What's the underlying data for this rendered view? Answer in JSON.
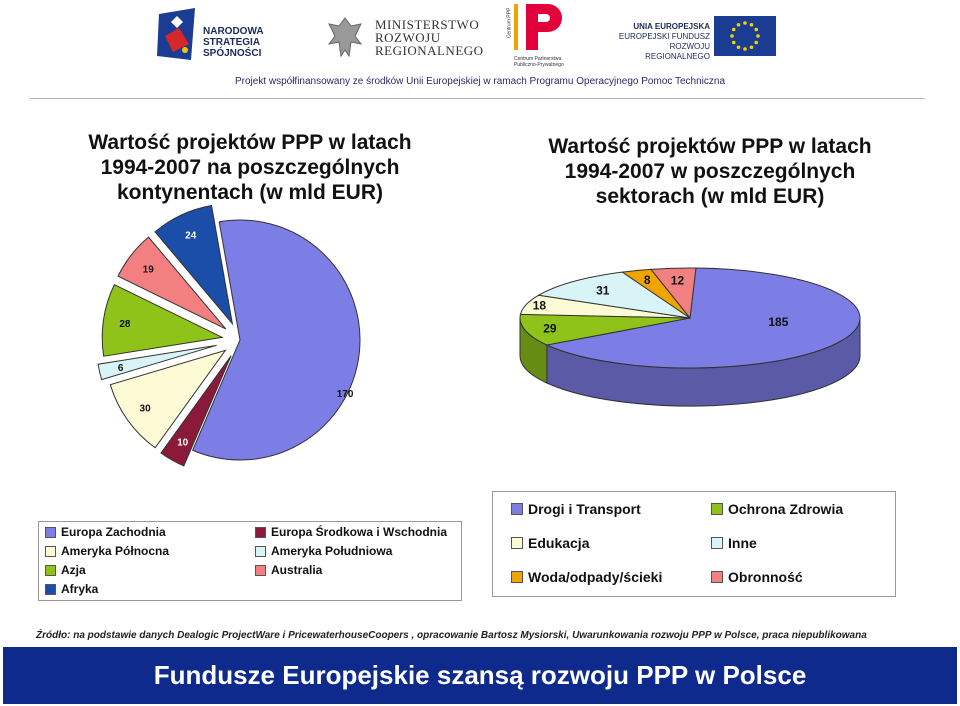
{
  "header": {
    "logo1_line1": "NARODOWA",
    "logo1_line2": "STRATEGIA SPÓJNOŚCI",
    "logo2_line1": "MINISTERSTWO",
    "logo2_line2": "ROZWOJU",
    "logo2_line3": "REGIONALNEGO",
    "logo3_caption1": "Centrum Partnerstwa",
    "logo3_caption2": "Publiczno-Prywatnego",
    "logo3_vertical": "Centrum PPP",
    "logo4_line1": "UNIA EUROPEJSKA",
    "logo4_line2": "EUROPEJSKI FUNDUSZ",
    "logo4_line3": "ROZWOJU REGIONALNEGO",
    "cofinance": "Projekt współfinansowany ze środków Unii Europejskiej w ramach Programu Operacyjnego Pomoc Techniczna"
  },
  "colors": {
    "navy": "#0d2a8c",
    "blue": "#7d7de6",
    "maroon": "#8b1a3a",
    "cream": "#fdfbd6",
    "lightcyan": "#d9f4f6",
    "green": "#8fc31a",
    "salmon": "#f28080",
    "darkblue": "#1b4ea8",
    "orange": "#f0a400"
  },
  "chart_data": [
    {
      "type": "pie",
      "title_lines": [
        "Wartość projektów PPP w latach",
        "1994-2007 na poszczególnych",
        "kontynentach (w mld EUR)"
      ],
      "categories": [
        "Europa Zachodnia",
        "Europa Środkowa i Wschodnia",
        "Ameryka Północna",
        "Ameryka Południowa",
        "Azja",
        "Australia",
        "Afryka"
      ],
      "values": [
        170,
        10,
        30,
        6,
        28,
        19,
        24
      ],
      "colors": [
        "#7d7de6",
        "#8b1a3a",
        "#fdfbd6",
        "#d9f4f6",
        "#8fc31a",
        "#f28080",
        "#1b4ea8"
      ],
      "legend": "bottom"
    },
    {
      "type": "pie",
      "title_lines": [
        "Wartość projektów PPP w latach",
        "1994-2007 w poszczególnych",
        "sektorach (w mld EUR)"
      ],
      "categories": [
        "Drogi i Transport",
        "Ochrona Zdrowia",
        "Edukacja",
        "Inne",
        "Woda/odpady/ścieki",
        "Obronność"
      ],
      "values": [
        185,
        29,
        18,
        31,
        8,
        12
      ],
      "colors": [
        "#7d7de6",
        "#8fc31a",
        "#fdfbd6",
        "#d9f4f6",
        "#f0a400",
        "#f28080"
      ],
      "legend": "bottom"
    }
  ],
  "source": "Źródło: na podstawie danych Dealogic ProjectWare i PricewaterhouseCoopers , opracowanie Bartosz Mysiorski, Uwarunkowania rozwoju PPP w Polsce, praca niepublikowana",
  "footer": "Fundusze Europejskie szansą rozwoju PPP w Polsce"
}
